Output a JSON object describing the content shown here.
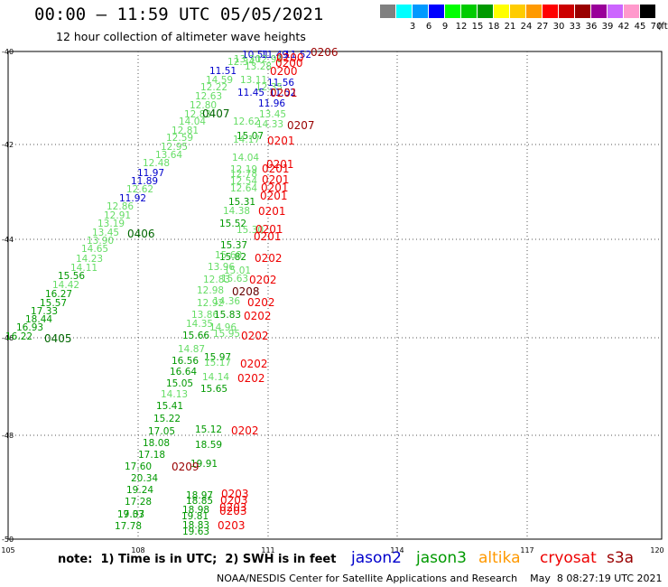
{
  "header": {
    "title": "00:00 – 11:59 UTC 05/05/2021",
    "subtitle": "12 hour collection of altimeter wave heights"
  },
  "legend": {
    "unit": "(ft)",
    "entries": [
      {
        "label": "",
        "color": "#808080"
      },
      {
        "label": "3",
        "color": "#00ffff"
      },
      {
        "label": "6",
        "color": "#0099ff"
      },
      {
        "label": "9",
        "color": "#0000ff"
      },
      {
        "label": "12",
        "color": "#00ff00"
      },
      {
        "label": "15",
        "color": "#00cc00"
      },
      {
        "label": "18",
        "color": "#009900"
      },
      {
        "label": "21",
        "color": "#ffff00"
      },
      {
        "label": "24",
        "color": "#ffcc00"
      },
      {
        "label": "27",
        "color": "#ff9900"
      },
      {
        "label": "30",
        "color": "#ff0000"
      },
      {
        "label": "33",
        "color": "#cc0000"
      },
      {
        "label": "36",
        "color": "#990000"
      },
      {
        "label": "39",
        "color": "#990099"
      },
      {
        "label": "42",
        "color": "#cc66ff"
      },
      {
        "label": "45",
        "color": "#ff99cc"
      },
      {
        "label": "70",
        "color": "#000000"
      }
    ]
  },
  "axes": {
    "lon_ticks": [
      "105",
      "108",
      "111",
      "114",
      "117",
      "120"
    ],
    "lat_ticks": [
      "-40",
      "-42",
      "-44",
      "-46",
      "-48",
      "-50"
    ]
  },
  "observations": [
    {
      "v": "10.51",
      "c": "#0000cc"
    },
    {
      "v": "11.49",
      "c": "#0000cc"
    },
    {
      "v": "11.52",
      "c": "#0000cc"
    },
    {
      "v": "13.30",
      "c": "#66dd66"
    },
    {
      "v": "12.98",
      "c": "#66dd66"
    },
    {
      "v": "12.34",
      "c": "#66dd66"
    },
    {
      "v": "11.51",
      "c": "#0000cc"
    },
    {
      "v": "13.28",
      "c": "#66dd66"
    },
    {
      "v": "14.59",
      "c": "#66dd66"
    },
    {
      "v": "13.11",
      "c": "#66dd66"
    },
    {
      "v": "12.22",
      "c": "#66dd66"
    },
    {
      "v": "11.56",
      "c": "#0000cc"
    },
    {
      "v": "12.35",
      "c": "#66dd66"
    },
    {
      "v": "11.45",
      "c": "#0000cc"
    },
    {
      "v": "11.52",
      "c": "#0000cc"
    },
    {
      "v": "12.63",
      "c": "#66dd66"
    },
    {
      "v": "11.96",
      "c": "#0000cc"
    },
    {
      "v": "12.80",
      "c": "#66dd66"
    },
    {
      "v": "12.83",
      "c": "#66dd66"
    },
    {
      "v": "13.45",
      "c": "#66dd66"
    },
    {
      "v": "14.04",
      "c": "#66dd66"
    },
    {
      "v": "12.62",
      "c": "#66dd66"
    },
    {
      "v": "14.33",
      "c": "#66dd66"
    },
    {
      "v": "12.81",
      "c": "#66dd66"
    },
    {
      "v": "15.07",
      "c": "#009900"
    },
    {
      "v": "12.59",
      "c": "#66dd66"
    },
    {
      "v": "14.17",
      "c": "#66dd66"
    },
    {
      "v": "12.95",
      "c": "#66dd66"
    },
    {
      "v": "13.64",
      "c": "#66dd66"
    },
    {
      "v": "14.04",
      "c": "#66dd66"
    },
    {
      "v": "12.48",
      "c": "#66dd66"
    },
    {
      "v": "12.19",
      "c": "#66dd66"
    },
    {
      "v": "11.97",
      "c": "#0000cc"
    },
    {
      "v": "12.78",
      "c": "#66dd66"
    },
    {
      "v": "11.89",
      "c": "#0000cc"
    },
    {
      "v": "12.54",
      "c": "#66dd66"
    },
    {
      "v": "12.62",
      "c": "#66dd66"
    },
    {
      "v": "12.64",
      "c": "#66dd66"
    },
    {
      "v": "11.92",
      "c": "#0000cc"
    },
    {
      "v": "15.31",
      "c": "#009900"
    },
    {
      "v": "12.86",
      "c": "#66dd66"
    },
    {
      "v": "14.38",
      "c": "#66dd66"
    },
    {
      "v": "12.91",
      "c": "#66dd66"
    },
    {
      "v": "15.52",
      "c": "#009900"
    },
    {
      "v": "13.19",
      "c": "#66dd66"
    },
    {
      "v": "13.45",
      "c": "#66dd66"
    },
    {
      "v": "15.30",
      "c": "#66dd66"
    },
    {
      "v": "13.90",
      "c": "#66dd66"
    },
    {
      "v": "15.37",
      "c": "#009900"
    },
    {
      "v": "14.65",
      "c": "#66dd66"
    },
    {
      "v": "15.82",
      "c": "#009900"
    },
    {
      "v": "14.23",
      "c": "#66dd66"
    },
    {
      "v": "15.68",
      "c": "#66dd66"
    },
    {
      "v": "14.11",
      "c": "#66dd66"
    },
    {
      "v": "13.96",
      "c": "#66dd66"
    },
    {
      "v": "15.01",
      "c": "#66dd66"
    },
    {
      "v": "15.56",
      "c": "#009900"
    },
    {
      "v": "12.83",
      "c": "#66dd66"
    },
    {
      "v": "15.63",
      "c": "#66dd66"
    },
    {
      "v": "14.42",
      "c": "#66dd66"
    },
    {
      "v": "16.27",
      "c": "#009900"
    },
    {
      "v": "12.98",
      "c": "#66dd66"
    },
    {
      "v": "12.92",
      "c": "#66dd66"
    },
    {
      "v": "15.57",
      "c": "#009900"
    },
    {
      "v": "14.36",
      "c": "#66dd66"
    },
    {
      "v": "17.33",
      "c": "#009900"
    },
    {
      "v": "13.86",
      "c": "#66dd66"
    },
    {
      "v": "15.83",
      "c": "#009900"
    },
    {
      "v": "18.44",
      "c": "#009900"
    },
    {
      "v": "14.35",
      "c": "#66dd66"
    },
    {
      "v": "14.96",
      "c": "#66dd66"
    },
    {
      "v": "16.93",
      "c": "#009900"
    },
    {
      "v": "15.66",
      "c": "#009900"
    },
    {
      "v": "15.95",
      "c": "#66dd66"
    },
    {
      "v": "16.22",
      "c": "#009900"
    },
    {
      "v": "14.87",
      "c": "#66dd66"
    },
    {
      "v": "15.97",
      "c": "#009900"
    },
    {
      "v": "16.56",
      "c": "#009900"
    },
    {
      "v": "15.17",
      "c": "#66dd66"
    },
    {
      "v": "16.64",
      "c": "#009900"
    },
    {
      "v": "14.14",
      "c": "#66dd66"
    },
    {
      "v": "15.05",
      "c": "#009900"
    },
    {
      "v": "15.65",
      "c": "#009900"
    },
    {
      "v": "14.13",
      "c": "#66dd66"
    },
    {
      "v": "15.41",
      "c": "#009900"
    },
    {
      "v": "15.22",
      "c": "#009900"
    },
    {
      "v": "17.05",
      "c": "#009900"
    },
    {
      "v": "15.12",
      "c": "#009900"
    },
    {
      "v": "18.08",
      "c": "#009900"
    },
    {
      "v": "18.59",
      "c": "#009900"
    },
    {
      "v": "17.18",
      "c": "#009900"
    },
    {
      "v": "17.60",
      "c": "#009900"
    },
    {
      "v": "19.91",
      "c": "#009900"
    },
    {
      "v": "20.34",
      "c": "#009900"
    },
    {
      "v": "19.24",
      "c": "#009900"
    },
    {
      "v": "18.97",
      "c": "#009900"
    },
    {
      "v": "17.28",
      "c": "#009900"
    },
    {
      "v": "18.85",
      "c": "#009900"
    },
    {
      "v": "17.33",
      "c": "#009900"
    },
    {
      "v": "18.98",
      "c": "#009900"
    },
    {
      "v": "19.07",
      "c": "#009900"
    },
    {
      "v": "19.81",
      "c": "#009900"
    },
    {
      "v": "17.78",
      "c": "#009900"
    },
    {
      "v": "18.83",
      "c": "#009900"
    },
    {
      "v": "19.63",
      "c": "#009900"
    }
  ],
  "track_labels": [
    {
      "v": "0206",
      "c": "#990000"
    },
    {
      "v": "0200",
      "c": "#ee0000"
    },
    {
      "v": "0200",
      "c": "#ee0000"
    },
    {
      "v": "0200",
      "c": "#ee0000"
    },
    {
      "v": "0201",
      "c": "#cc0000"
    },
    {
      "v": "0407",
      "c": "#006600"
    },
    {
      "v": "0207",
      "c": "#990000"
    },
    {
      "v": "0201",
      "c": "#ee0000"
    },
    {
      "v": "0201",
      "c": "#ee0000"
    },
    {
      "v": "0201",
      "c": "#ee0000"
    },
    {
      "v": "0201",
      "c": "#ee0000"
    },
    {
      "v": "0201",
      "c": "#ee0000"
    },
    {
      "v": "0201",
      "c": "#ee0000"
    },
    {
      "v": "0201",
      "c": "#ee0000"
    },
    {
      "v": "0406",
      "c": "#006600"
    },
    {
      "v": "0201",
      "c": "#ee0000"
    },
    {
      "v": "0201",
      "c": "#ee0000"
    },
    {
      "v": "0202",
      "c": "#ee0000"
    },
    {
      "v": "0202",
      "c": "#ee0000"
    },
    {
      "v": "0208",
      "c": "#660000"
    },
    {
      "v": "0202",
      "c": "#ee0000"
    },
    {
      "v": "0202",
      "c": "#ee0000"
    },
    {
      "v": "0405",
      "c": "#006600"
    },
    {
      "v": "0202",
      "c": "#ee0000"
    },
    {
      "v": "0202",
      "c": "#ee0000"
    },
    {
      "v": "0202",
      "c": "#ee0000"
    },
    {
      "v": "0202",
      "c": "#ee0000"
    },
    {
      "v": "0209",
      "c": "#990000"
    },
    {
      "v": "0203",
      "c": "#ee0000"
    },
    {
      "v": "0203",
      "c": "#ee0000"
    },
    {
      "v": "0203",
      "c": "#ee0000"
    },
    {
      "v": "0203",
      "c": "#ee0000"
    },
    {
      "v": "0203",
      "c": "#ee0000"
    }
  ],
  "footer": {
    "note": "note:  1) Time is in UTC;  2) SWH is in feet",
    "credit": "NOAA/NESDIS Center for Satellite Applications and Research    May  8 08:27:19 UTC 2021",
    "satellites": [
      {
        "name": "jason2",
        "color": "#0000cc"
      },
      {
        "name": "jason3",
        "color": "#009900"
      },
      {
        "name": "altika",
        "color": "#ff9900"
      },
      {
        "name": "cryosat",
        "color": "#ee0000"
      },
      {
        "name": "s3a",
        "color": "#990000"
      }
    ]
  }
}
